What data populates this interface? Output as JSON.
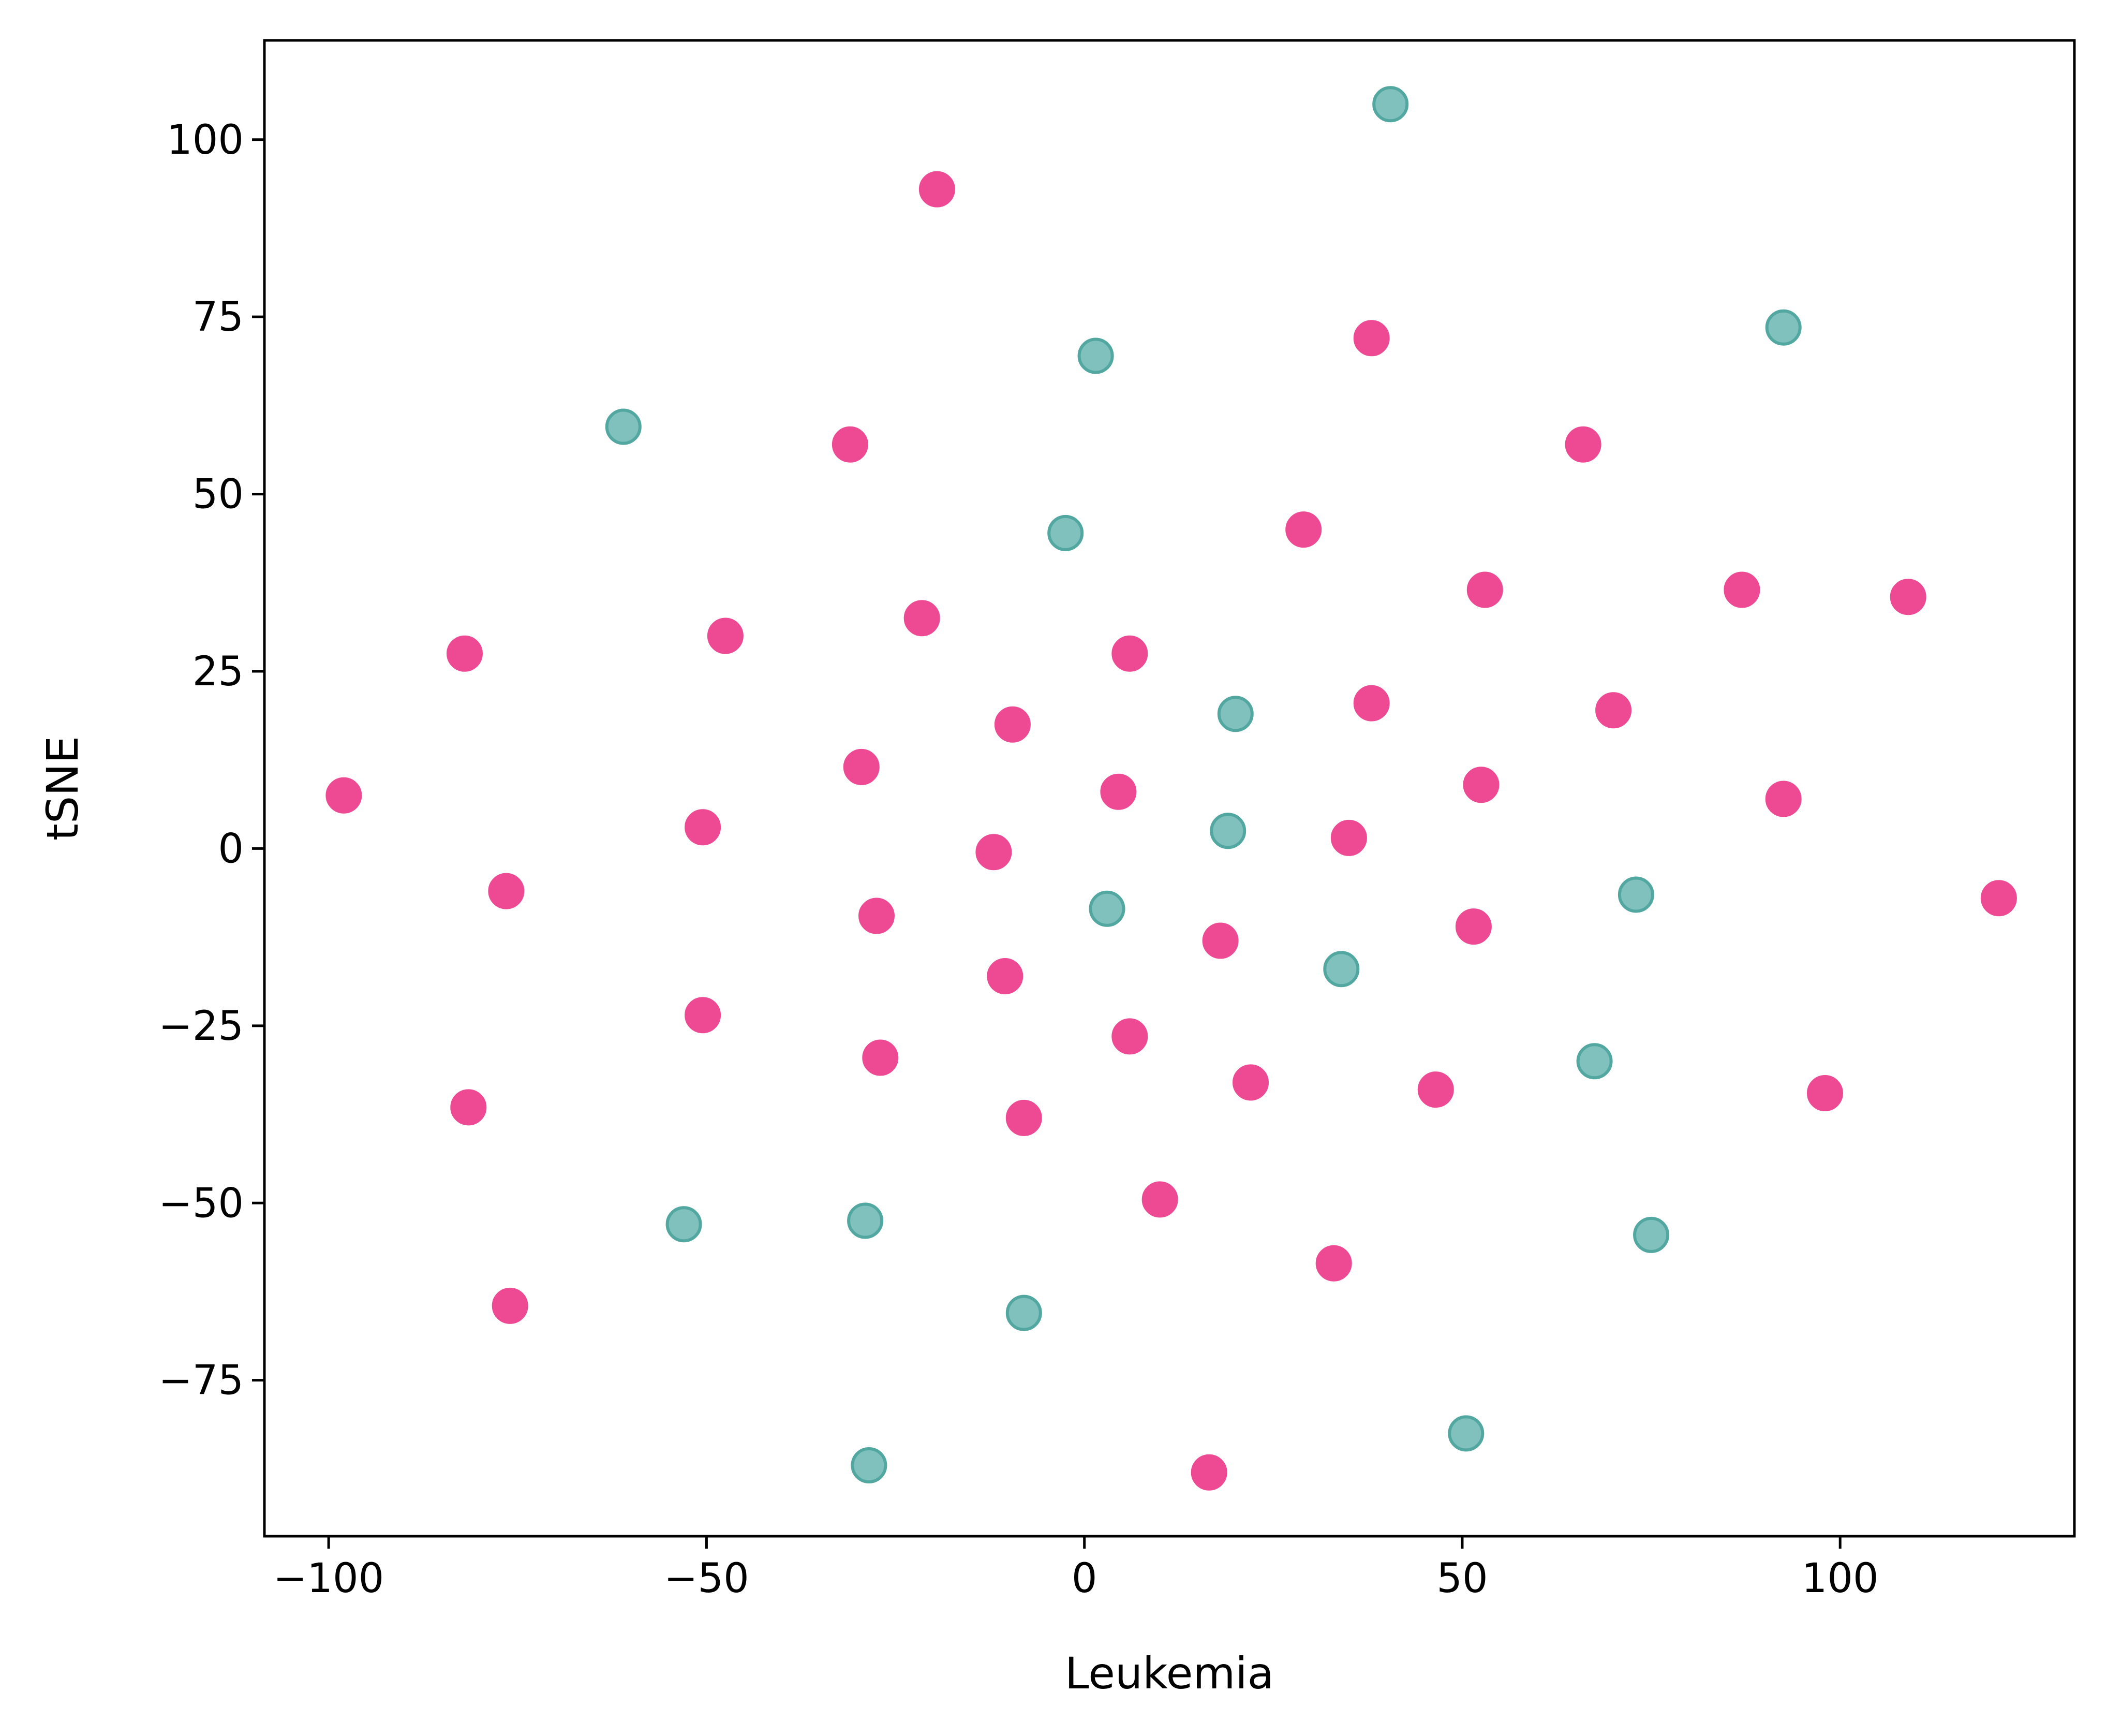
{
  "chart_data": {
    "type": "scatter",
    "title": "",
    "xlabel": "Leukemia",
    "ylabel": "tSNE",
    "xlim": [
      -108.5,
      131
    ],
    "ylim": [
      -97,
      114
    ],
    "xticks": [
      -100,
      -50,
      0,
      50,
      100
    ],
    "yticks": [
      -75,
      -50,
      -25,
      0,
      25,
      50,
      75,
      100
    ],
    "xtick_labels": [
      "−100",
      "−50",
      "0",
      "50",
      "100"
    ],
    "ytick_labels": [
      "−75",
      "−50",
      "−25",
      "0",
      "25",
      "50",
      "75",
      "100"
    ],
    "grid": false,
    "legend": "none",
    "series": [
      {
        "color": "#ee4a94",
        "edge_color": "#ee4a94",
        "points": [
          {
            "x": -19.5,
            "y": 93
          },
          {
            "x": 38,
            "y": 72
          },
          {
            "x": -31,
            "y": 57
          },
          {
            "x": 66,
            "y": 57
          },
          {
            "x": 29,
            "y": 45
          },
          {
            "x": 53,
            "y": 36.5
          },
          {
            "x": 87,
            "y": 36.5
          },
          {
            "x": 109,
            "y": 35.5
          },
          {
            "x": -21.5,
            "y": 32.5
          },
          {
            "x": -82,
            "y": 27.5
          },
          {
            "x": -47.5,
            "y": 30
          },
          {
            "x": 6,
            "y": 27.5
          },
          {
            "x": 38,
            "y": 20.5
          },
          {
            "x": 70,
            "y": 19.5
          },
          {
            "x": -9.5,
            "y": 17.5
          },
          {
            "x": -29.5,
            "y": 11.5
          },
          {
            "x": -98,
            "y": 7.5
          },
          {
            "x": 52.5,
            "y": 9
          },
          {
            "x": 92.5,
            "y": 7
          },
          {
            "x": -50.5,
            "y": 3
          },
          {
            "x": 4.5,
            "y": 8
          },
          {
            "x": 35,
            "y": 1.5
          },
          {
            "x": -12,
            "y": -0.5
          },
          {
            "x": -76.5,
            "y": -6
          },
          {
            "x": 121,
            "y": -7
          },
          {
            "x": -27.5,
            "y": -9.5
          },
          {
            "x": 51.5,
            "y": -11
          },
          {
            "x": 18,
            "y": -13
          },
          {
            "x": -10.5,
            "y": -18
          },
          {
            "x": -50.5,
            "y": -23.5
          },
          {
            "x": 6,
            "y": -26.5
          },
          {
            "x": -27,
            "y": -29.5
          },
          {
            "x": 22,
            "y": -33
          },
          {
            "x": 46.5,
            "y": -34
          },
          {
            "x": 98,
            "y": -34.5
          },
          {
            "x": -81.5,
            "y": -36.5
          },
          {
            "x": -8,
            "y": -38
          },
          {
            "x": 10,
            "y": -49.5
          },
          {
            "x": 33,
            "y": -58.5
          },
          {
            "x": -76,
            "y": -64.5
          },
          {
            "x": 16.5,
            "y": -88
          }
        ]
      },
      {
        "color": "#80c1bd",
        "edge_color": "#52a8a1",
        "points": [
          {
            "x": 40.5,
            "y": 105
          },
          {
            "x": 92.5,
            "y": 73.5
          },
          {
            "x": 1.5,
            "y": 69.5
          },
          {
            "x": -61,
            "y": 59.5
          },
          {
            "x": -2.5,
            "y": 44.5
          },
          {
            "x": 20,
            "y": 19
          },
          {
            "x": 19,
            "y": 2.5
          },
          {
            "x": 73,
            "y": -6.5
          },
          {
            "x": 3,
            "y": -8.5
          },
          {
            "x": 34,
            "y": -17
          },
          {
            "x": 67.5,
            "y": -30
          },
          {
            "x": -29,
            "y": -52.5
          },
          {
            "x": -53,
            "y": -53
          },
          {
            "x": 75,
            "y": -54.5
          },
          {
            "x": -8,
            "y": -65.5
          },
          {
            "x": 50.5,
            "y": -82.5
          },
          {
            "x": -28.5,
            "y": -87
          }
        ]
      }
    ]
  }
}
